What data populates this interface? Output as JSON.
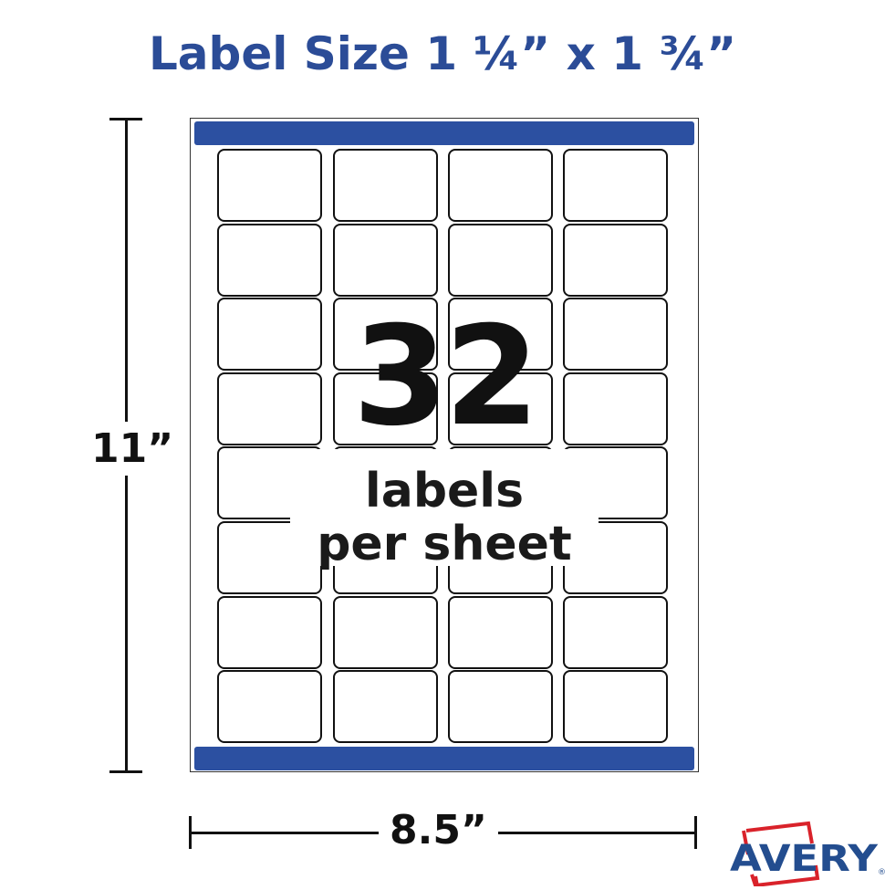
{
  "title": "Label Size 1 ¼” x 1 ¾”",
  "count": "32",
  "count_line1": "labels",
  "count_line2": "per sheet",
  "height_dim": "11”",
  "width_dim": "8.5”",
  "grid": {
    "columns": 4,
    "rows": 8
  },
  "brand": {
    "name": "AVERY",
    "registered": "®"
  },
  "colors": {
    "title": "#2b4c97",
    "bars": "#2c50a1",
    "logo_blue": "#234d8f",
    "logo_red": "#d9222a"
  }
}
